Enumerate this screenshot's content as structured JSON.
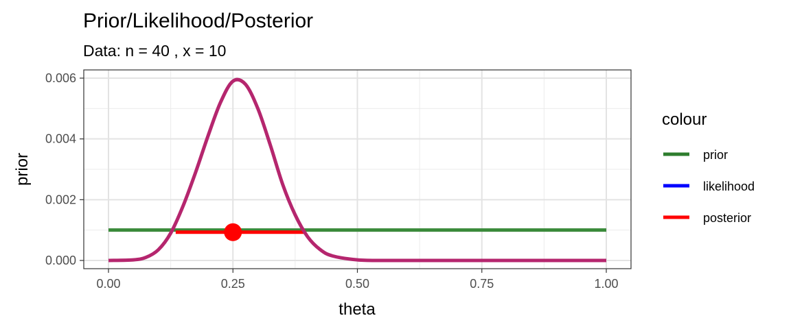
{
  "chart_data": {
    "type": "line",
    "title": "Prior/Likelihood/Posterior",
    "subtitle": "Data: n = 40 , x = 10",
    "xlabel": "theta",
    "ylabel": "prior",
    "xlim": [
      0,
      1
    ],
    "ylim": [
      0,
      0.006
    ],
    "x_ticks": [
      "0.00",
      "0.25",
      "0.50",
      "0.75",
      "1.00"
    ],
    "y_ticks": [
      "0.000",
      "0.002",
      "0.004",
      "0.006"
    ],
    "grid": true,
    "legend": {
      "title": "colour",
      "position": "right",
      "entries": [
        {
          "label": "prior",
          "color": "#2e7d2e"
        },
        {
          "label": "likelihood",
          "color": "#0000ff"
        },
        {
          "label": "posterior",
          "color": "#ff0000"
        }
      ]
    },
    "series": [
      {
        "name": "prior",
        "color": "#3a8a3a",
        "x": [
          0,
          1
        ],
        "y": [
          0.001,
          0.001
        ]
      },
      {
        "name": "posterior",
        "color": "#b5266e",
        "x": [
          0.0,
          0.05,
          0.075,
          0.1,
          0.125,
          0.15,
          0.175,
          0.2,
          0.225,
          0.25,
          0.275,
          0.3,
          0.325,
          0.35,
          0.375,
          0.4,
          0.425,
          0.45,
          0.5,
          0.55,
          0.6,
          0.7,
          0.8,
          0.9,
          1.0
        ],
        "y": [
          0.0,
          2e-05,
          0.0001,
          0.00035,
          0.0009,
          0.0018,
          0.0029,
          0.0041,
          0.0052,
          0.0059,
          0.0058,
          0.005,
          0.0038,
          0.0025,
          0.0015,
          0.00078,
          0.00036,
          0.00015,
          2e-05,
          0.0,
          0.0,
          0.0,
          0.0,
          0.0,
          0.0
        ]
      }
    ],
    "interval": {
      "color": "#ff0000",
      "x_low": 0.135,
      "x_high": 0.395,
      "y": 0.00093,
      "point_x": 0.25,
      "point_y": 0.00093
    }
  }
}
